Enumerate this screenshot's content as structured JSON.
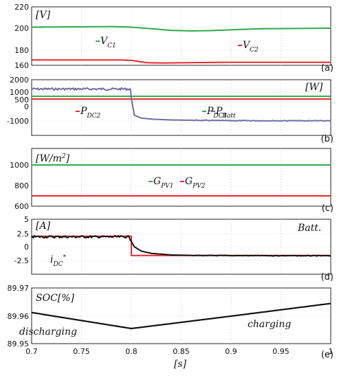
{
  "colors": {
    "green": "#2ea84a",
    "red": "#e8262c",
    "black": "#111111",
    "purple": "#6e6fa3",
    "grid": "#cfcfcf"
  },
  "x_axis": {
    "ticks": [
      "0.7",
      "0.75",
      "0.8",
      "0.85",
      "0.9",
      "0.95",
      "1"
    ],
    "label": "[s]",
    "xlim": [
      0.7,
      1.0
    ]
  },
  "chart_data": [
    {
      "type": "line",
      "panel": "(a)",
      "unit": "[V]",
      "ylim": [
        160,
        220
      ],
      "yticks": [
        "160",
        "180",
        "200",
        "220"
      ],
      "series": [
        {
          "name": "V_C1",
          "label_main": "V",
          "label_sub": "C1",
          "color": "green",
          "x": [
            0.7,
            0.78,
            0.8,
            0.82,
            0.84,
            0.86,
            0.88,
            0.9,
            0.93,
            1.0
          ],
          "y": [
            201,
            201.5,
            201,
            199.5,
            198,
            197.5,
            197.8,
            198.5,
            199.5,
            200
          ]
        },
        {
          "name": "V_C2",
          "label_main": "V",
          "label_sub": "C2",
          "color": "red",
          "x": [
            0.7,
            0.79,
            0.8,
            0.815,
            0.83,
            0.86,
            0.9,
            1.0
          ],
          "y": [
            167,
            167,
            166.5,
            163.5,
            163,
            163.5,
            164,
            164
          ]
        }
      ]
    },
    {
      "type": "line",
      "panel": "(b)",
      "unit": "[W]",
      "ylim": [
        -1000,
        2000
      ],
      "yticks": [
        "-1000",
        "0",
        "500",
        "1000",
        "2000"
      ],
      "series": [
        {
          "name": "P_DC1",
          "label_main": "P",
          "label_sub": "DC1",
          "color": "green",
          "x": [
            0.7,
            1.0
          ],
          "y": [
            720,
            720
          ]
        },
        {
          "name": "P_DC2",
          "label_main": "P",
          "label_sub": "DC2",
          "color": "red",
          "x": [
            0.7,
            1.0
          ],
          "y": [
            540,
            540
          ]
        },
        {
          "name": "P_Batt",
          "label_main": "P",
          "label_sub": "Batt",
          "color": "purple",
          "x": [
            0.7,
            0.799,
            0.8,
            0.803,
            0.81,
            0.82,
            0.84,
            0.87,
            0.9,
            1.0
          ],
          "y": [
            1250,
            1250,
            600,
            -600,
            -800,
            -870,
            -930,
            -960,
            -980,
            -990
          ]
        }
      ]
    },
    {
      "type": "line",
      "panel": "(c)",
      "unit": "[W/m2]",
      "ylim": [
        600,
        1000
      ],
      "yticks": [
        "600",
        "800",
        "1000"
      ],
      "series": [
        {
          "name": "G_PV1",
          "label_main": "G",
          "label_sub": "PV1",
          "color": "green",
          "x": [
            0.7,
            1.0
          ],
          "y": [
            1000,
            1000
          ]
        },
        {
          "name": "G_PV2",
          "label_main": "G",
          "label_sub": "PV2",
          "color": "red",
          "x": [
            0.7,
            1.0
          ],
          "y": [
            700,
            700
          ]
        }
      ]
    },
    {
      "type": "line",
      "panel": "(d)",
      "unit": "[A]",
      "ylim": [
        -5,
        5
      ],
      "yticks": [
        "-2.5",
        "0",
        "2.5",
        "5"
      ],
      "series": [
        {
          "name": "i_DC*",
          "label_main": "i",
          "label_sub": "DC",
          "label_sup": "*",
          "color": "red",
          "x": [
            0.7,
            0.8,
            0.8,
            1.0
          ],
          "y": [
            2.0,
            2.0,
            -1.6,
            -1.6
          ]
        },
        {
          "name": "Batt.",
          "label_main": "Batt.",
          "color": "black",
          "x": [
            0.7,
            0.798,
            0.8,
            0.803,
            0.81,
            0.82,
            0.84,
            0.87,
            1.0
          ],
          "y": [
            1.9,
            1.9,
            1.0,
            0.0,
            -0.8,
            -1.2,
            -1.5,
            -1.6,
            -1.65
          ]
        }
      ]
    },
    {
      "type": "line",
      "panel": "(e)",
      "unit": "SOC[%]",
      "ylim": [
        89.95,
        89.97
      ],
      "yticks": [
        "89.95",
        "89.96",
        "89.97"
      ],
      "annotations": [
        "discharging",
        "charging"
      ],
      "series": [
        {
          "name": "SOC",
          "color": "black",
          "x": [
            0.7,
            0.8,
            1.0
          ],
          "y": [
            89.9613,
            89.9555,
            89.9645
          ]
        }
      ]
    }
  ]
}
